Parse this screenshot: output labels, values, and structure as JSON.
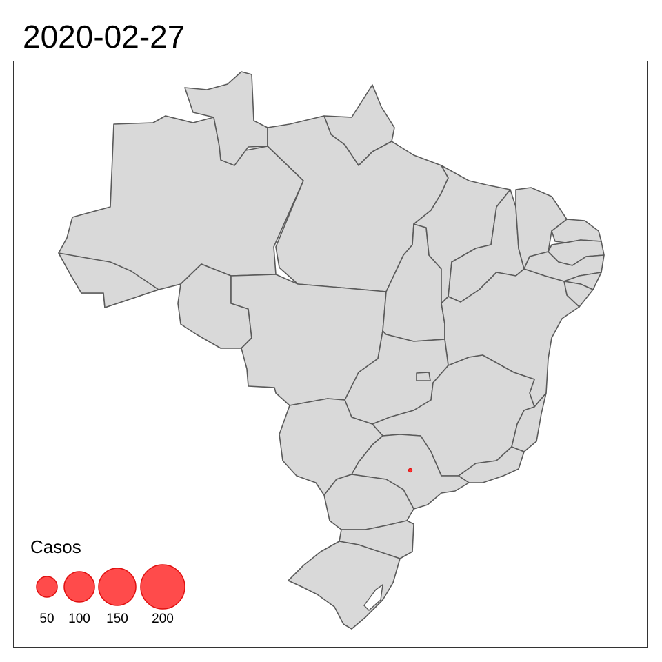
{
  "title": "2020-02-27",
  "colors": {
    "bubble_fill": "#ff4b4b",
    "bubble_stroke": "#e01010",
    "state_fill": "#d9d9d9",
    "state_stroke": "#5a5a5a"
  },
  "map": {
    "country": "Brazil",
    "cases": [
      {
        "location": "São Paulo",
        "casos": 1
      }
    ]
  },
  "legend": {
    "title": "Casos",
    "items": [
      {
        "label": "50",
        "value": 50
      },
      {
        "label": "100",
        "value": 100
      },
      {
        "label": "150",
        "value": 150
      },
      {
        "label": "200",
        "value": 200
      }
    ]
  }
}
